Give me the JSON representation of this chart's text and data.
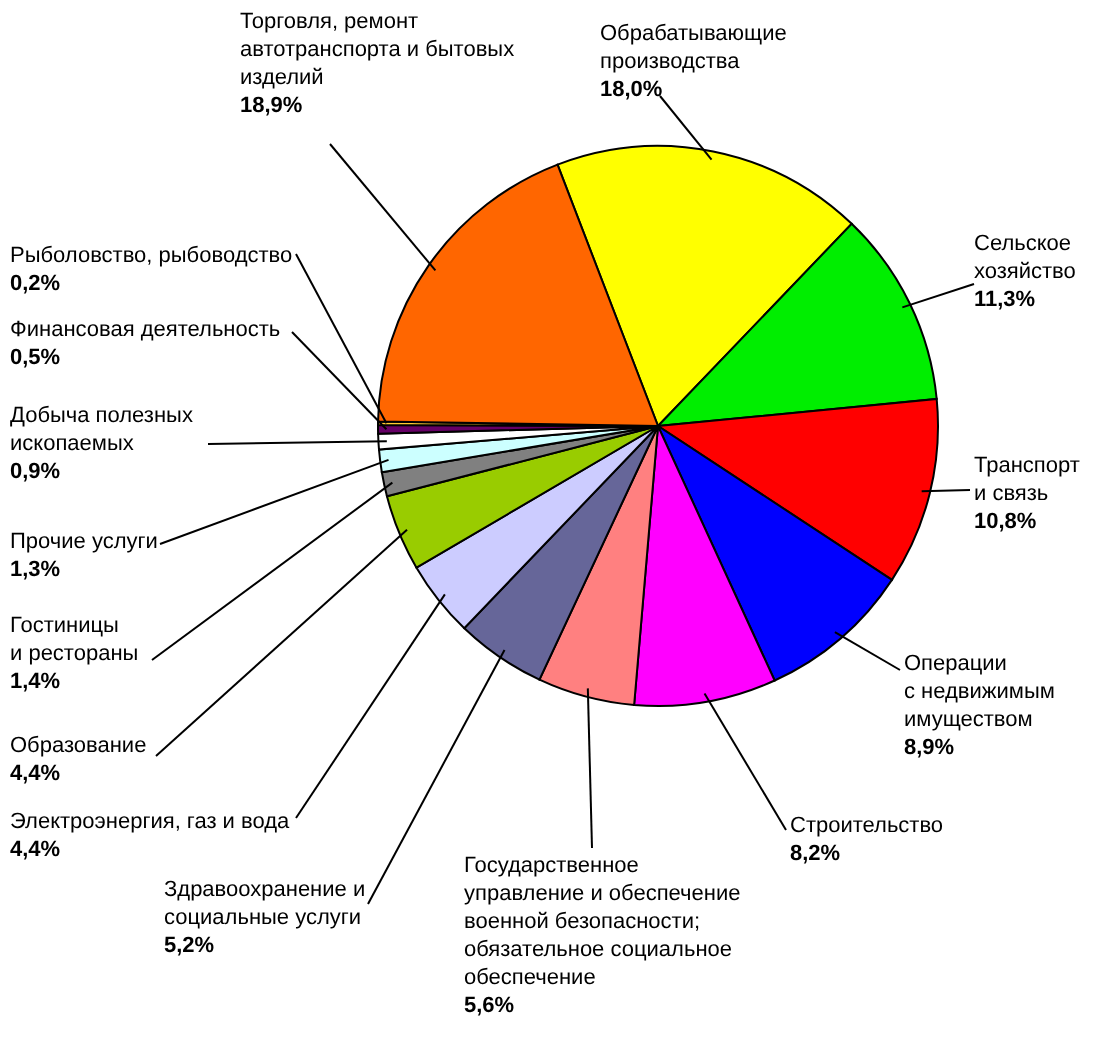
{
  "chart_data": {
    "type": "pie",
    "categories": [
      "Обрабатывающие производства",
      "Сельское хозяйство",
      "Транспорт и связь",
      "Операции с недвижимым имуществом",
      "Строительство",
      "Государственное управление и обеспечение военной безопасности; обязательное социальное обеспечение",
      "Здравоохранение и социальные услуги",
      "Электроэнергия, газ и вода",
      "Образование",
      "Гостиницы и рестораны",
      "Прочие услуги",
      "Добыча полезных ископаемых",
      "Финансовая деятельность",
      "Рыболовство, рыбоводство",
      "Торговля, ремонт автотранспорта и бытовых изделий"
    ],
    "values": [
      18.0,
      11.3,
      10.8,
      8.9,
      8.2,
      5.6,
      5.2,
      4.4,
      4.4,
      1.4,
      1.3,
      0.9,
      0.5,
      0.2,
      18.9
    ],
    "value_labels": [
      "18,0%",
      "11,3%",
      "10,8%",
      "8,9%",
      "8,2%",
      "5,6%",
      "5,2%",
      "4,4%",
      "4,4%",
      "1,4%",
      "1,3%",
      "0,9%",
      "0,5%",
      "0,2%",
      "18,9%"
    ],
    "colors": [
      "#ffff00",
      "#00ee00",
      "#ff0000",
      "#0000ff",
      "#ff00ff",
      "#ff8080",
      "#666699",
      "#ccccff",
      "#99cc00",
      "#808080",
      "#ccffff",
      "#ffffff",
      "#660066",
      "#ffcc33",
      "#ff6600"
    ]
  }
}
